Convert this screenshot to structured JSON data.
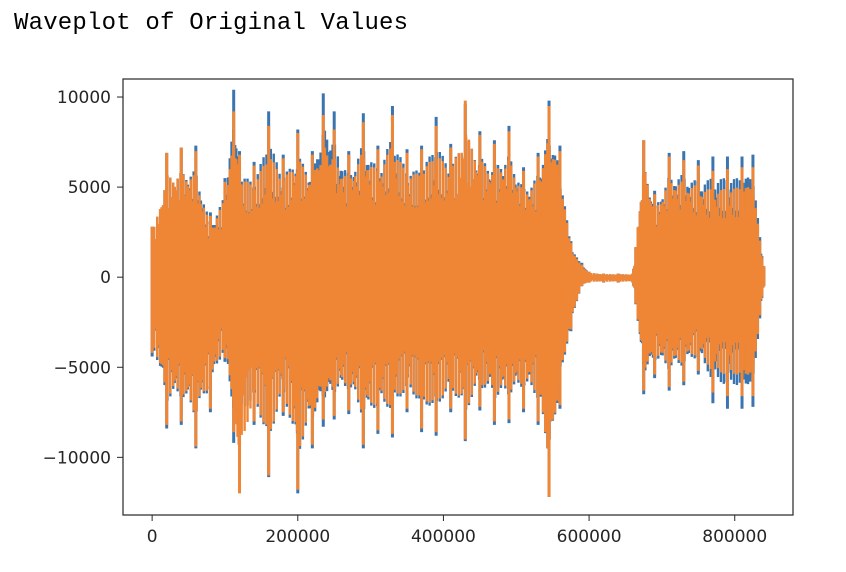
{
  "page": {
    "title": "Waveplot of Original Values"
  },
  "chart_data": {
    "type": "line",
    "title": "",
    "xlabel": "",
    "ylabel": "",
    "xlim": [
      -40000,
      880000
    ],
    "ylim": [
      -13200,
      11000
    ],
    "grid": false,
    "x_ticks": [
      0,
      200000,
      400000,
      600000,
      800000
    ],
    "x_tick_labels": [
      "0",
      "200000",
      "400000",
      "600000",
      "800000"
    ],
    "y_ticks": [
      10000,
      5000,
      0,
      -5000,
      -10000
    ],
    "y_tick_labels": [
      "10000",
      "5000",
      "0",
      "−5000",
      "−10000"
    ],
    "colors": {
      "series_1": "#3b75af",
      "series_2": "#ef8636",
      "frame": "#262626"
    },
    "series": [
      {
        "x": [
          0,
          20000,
          40000,
          60000,
          80000,
          100000,
          112000,
          120000,
          140000,
          160000,
          180000,
          200000,
          220000,
          235000,
          250000,
          270000,
          290000,
          310000,
          330000,
          350000,
          370000,
          390000,
          410000,
          430000,
          450000,
          470000,
          490000,
          510000,
          530000,
          545000,
          560000,
          575000,
          590000,
          600000,
          620000,
          640000,
          660000,
          675000,
          690000,
          710000,
          730000,
          750000,
          770000,
          790000,
          810000,
          825000,
          840000
        ],
        "max": [
          2800,
          6900,
          7200,
          7300,
          3600,
          5500,
          10400,
          7000,
          6400,
          9200,
          6800,
          8200,
          7000,
          10200,
          9200,
          7000,
          9100,
          7300,
          9500,
          7100,
          7300,
          8900,
          7400,
          9600,
          8100,
          7600,
          8400,
          6100,
          6900,
          9800,
          7300,
          2000,
          800,
          300,
          200,
          200,
          200,
          7600,
          4800,
          6900,
          7000,
          6500,
          6700,
          6700,
          6700,
          6800,
          600
        ],
        "min": [
          -4400,
          -8400,
          -8200,
          -9500,
          -7500,
          -4700,
          -9200,
          -9300,
          -8200,
          -11100,
          -7700,
          -12000,
          -9500,
          -8300,
          -7900,
          -7600,
          -9500,
          -8700,
          -8900,
          -7500,
          -8600,
          -8800,
          -7500,
          -9100,
          -7400,
          -8200,
          -8100,
          -7500,
          -8200,
          -12200,
          -7300,
          -3000,
          -500,
          -300,
          -300,
          -300,
          -300,
          -6500,
          -5600,
          -6300,
          -6000,
          -5400,
          -7000,
          -7300,
          -7300,
          -7200,
          -500
        ]
      },
      {
        "x": [
          0,
          20000,
          40000,
          60000,
          80000,
          100000,
          112000,
          120000,
          140000,
          160000,
          180000,
          200000,
          220000,
          235000,
          250000,
          270000,
          290000,
          310000,
          330000,
          350000,
          370000,
          390000,
          410000,
          430000,
          450000,
          470000,
          490000,
          510000,
          530000,
          545000,
          560000,
          575000,
          590000,
          600000,
          620000,
          640000,
          660000,
          675000,
          690000,
          710000,
          730000,
          750000,
          770000,
          790000,
          810000,
          825000,
          840000
        ],
        "max": [
          2800,
          6900,
          7200,
          7000,
          3400,
          5300,
          9200,
          6800,
          6200,
          8400,
          6600,
          8000,
          6800,
          9000,
          8200,
          6800,
          8600,
          7100,
          9000,
          6900,
          7100,
          8400,
          7200,
          9800,
          7900,
          7400,
          8100,
          5900,
          6700,
          9500,
          7000,
          1900,
          700,
          300,
          200,
          200,
          200,
          7600,
          4600,
          6700,
          6500,
          6200,
          5900,
          6000,
          6100,
          6100,
          600
        ],
        "min": [
          -4200,
          -8200,
          -8000,
          -9400,
          -7300,
          -4500,
          -8600,
          -12000,
          -8000,
          -11000,
          -7500,
          -11800,
          -9300,
          -7900,
          -7700,
          -7400,
          -9300,
          -8500,
          -8700,
          -7300,
          -8400,
          -8600,
          -7300,
          -9000,
          -7200,
          -8000,
          -7900,
          -7300,
          -8000,
          -12200,
          -7100,
          -2900,
          -500,
          -300,
          -300,
          -300,
          -300,
          -6300,
          -5400,
          -6100,
          -5800,
          -5200,
          -6400,
          -6600,
          -6600,
          -6600,
          -500
        ]
      }
    ]
  }
}
